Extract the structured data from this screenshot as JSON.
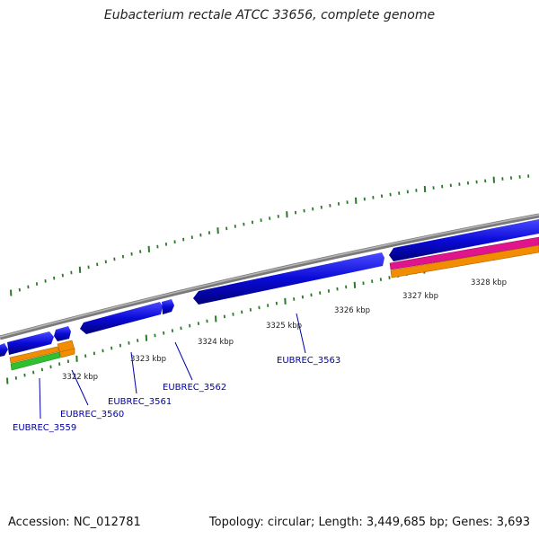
{
  "title": "Eubacterium rectale ATCC 33656, complete genome",
  "footer": {
    "accession": "Accession: NC_012781",
    "summary": "Topology: circular; Length: 3,449,685 bp; Genes: 3,693"
  },
  "kbp_labels": [
    "3322 kbp",
    "3323 kbp",
    "3324 kbp",
    "3325 kbp",
    "3326 kbp",
    "3327 kbp",
    "3328 kbp"
  ],
  "gene_labels": [
    "EUBREC_3559",
    "EUBREC_3560",
    "EUBREC_3561",
    "EUBREC_3562",
    "EUBREC_3563"
  ],
  "colors": {
    "backbone": "#8c8c8c",
    "cds": "#0a0ad8",
    "gene_green": "#2fbf2f",
    "gene_orange": "#f28c00",
    "gene_magenta": "#e0148c",
    "ticks": "#2a7a2a",
    "gene_label": "#0000aa"
  }
}
